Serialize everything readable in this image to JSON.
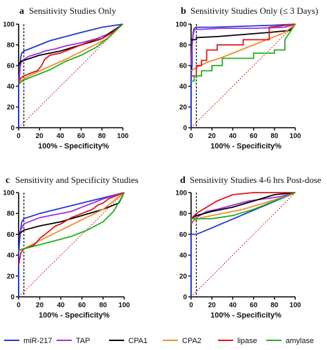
{
  "figure": {
    "xlabel": "100% - Specificity%",
    "legend_placement": "bottom",
    "legend": [
      {
        "name": "miR-217",
        "color": "#1f34e0"
      },
      {
        "name": "TAP",
        "color": "#a02de0"
      },
      {
        "name": "CPA1",
        "color": "#000000"
      },
      {
        "name": "CPA2",
        "color": "#f08c28"
      },
      {
        "name": "lipase",
        "color": "#e0121a"
      },
      {
        "name": "amylase",
        "color": "#20b020"
      }
    ]
  },
  "chart_data": [
    {
      "type": "line",
      "letter": "a",
      "title": "Sensitivity Studies Only",
      "xlabel": "100% - Specificity%",
      "xlim": [
        0,
        100
      ],
      "ylim": [
        0,
        100
      ],
      "xticks": [
        0,
        20,
        40,
        60,
        80,
        100
      ],
      "yticks": [
        0,
        20,
        40,
        60,
        80,
        100
      ],
      "vline": 5,
      "reference_diagonal": true,
      "series": [
        {
          "name": "miR-217",
          "color": "#1f34e0",
          "x": [
            0,
            0,
            1,
            2,
            3,
            5,
            10,
            30,
            60,
            80,
            100
          ],
          "y": [
            0,
            40,
            52,
            68,
            72,
            74,
            76,
            84,
            92,
            97,
            100
          ]
        },
        {
          "name": "TAP",
          "color": "#a02de0",
          "x": [
            0,
            2,
            5,
            10,
            20,
            25,
            35,
            45,
            60,
            75,
            85,
            100
          ],
          "y": [
            45,
            62,
            66,
            69,
            72,
            74,
            76,
            79,
            82,
            86,
            90,
            100
          ]
        },
        {
          "name": "CPA1",
          "color": "#000000",
          "x": [
            0,
            2,
            5,
            20,
            40,
            60,
            80,
            100
          ],
          "y": [
            60,
            64,
            65,
            70,
            74,
            80,
            86,
            100
          ]
        },
        {
          "name": "CPA2",
          "color": "#f08c28",
          "x": [
            0,
            3,
            10,
            25,
            45,
            65,
            85,
            100
          ],
          "y": [
            44,
            46,
            50,
            57,
            66,
            76,
            86,
            100
          ]
        },
        {
          "name": "lipase",
          "color": "#e0121a",
          "x": [
            0,
            2,
            5,
            10,
            15,
            18,
            22,
            25,
            30,
            40,
            50,
            60,
            70,
            80,
            90,
            100
          ],
          "y": [
            44,
            48,
            50,
            52,
            54,
            55,
            60,
            66,
            70,
            72,
            76,
            80,
            84,
            86,
            92,
            100
          ]
        },
        {
          "name": "amylase",
          "color": "#20b020",
          "x": [
            0,
            5,
            15,
            30,
            45,
            60,
            75,
            85,
            100
          ],
          "y": [
            42,
            46,
            50,
            56,
            64,
            70,
            78,
            86,
            100
          ]
        }
      ]
    },
    {
      "type": "line",
      "letter": "b",
      "title": "Sensitivity Studies Only (≤ 3 Days)",
      "xlabel": "100% - Specificity%",
      "xlim": [
        0,
        100
      ],
      "ylim": [
        0,
        100
      ],
      "xticks": [
        0,
        20,
        40,
        60,
        80,
        100
      ],
      "yticks": [
        0,
        20,
        40,
        60,
        80,
        100
      ],
      "vline": 5,
      "reference_diagonal": true,
      "series": [
        {
          "name": "miR-217",
          "color": "#1f34e0",
          "x": [
            0,
            0,
            1,
            1,
            2,
            3,
            5,
            20,
            50,
            80,
            100
          ],
          "y": [
            0,
            50,
            60,
            80,
            92,
            96,
            97,
            97,
            98,
            99,
            100
          ]
        },
        {
          "name": "TAP",
          "color": "#a02de0",
          "x": [
            0,
            1,
            2,
            3,
            5,
            10,
            30,
            60,
            90,
            100
          ],
          "y": [
            60,
            80,
            90,
            94,
            95,
            95,
            96,
            96,
            97,
            100
          ]
        },
        {
          "name": "CPA1",
          "color": "#000000",
          "x": [
            0,
            5,
            5,
            25,
            50,
            75,
            95,
            100
          ],
          "y": [
            85,
            85,
            87,
            88,
            90,
            92,
            94,
            100
          ]
        },
        {
          "name": "CPA2",
          "color": "#f08c28",
          "x": [
            0,
            5,
            15,
            30,
            45,
            60,
            75,
            90,
            100
          ],
          "y": [
            55,
            58,
            63,
            68,
            74,
            80,
            86,
            92,
            100
          ]
        },
        {
          "name": "lipase",
          "color": "#e0121a",
          "x": [
            0,
            5,
            5,
            10,
            10,
            15,
            15,
            25,
            25,
            50,
            50,
            75,
            75,
            100
          ],
          "y": [
            50,
            50,
            60,
            60,
            65,
            65,
            75,
            75,
            80,
            80,
            85,
            85,
            97,
            100
          ]
        },
        {
          "name": "amylase",
          "color": "#20b020",
          "x": [
            0,
            3,
            3,
            10,
            10,
            20,
            20,
            30,
            30,
            60,
            60,
            80,
            80,
            90,
            90,
            100
          ],
          "y": [
            45,
            45,
            50,
            50,
            55,
            55,
            60,
            60,
            67,
            67,
            72,
            72,
            75,
            75,
            85,
            100
          ]
        }
      ]
    },
    {
      "type": "line",
      "letter": "c",
      "title": "Sensitivity and Specificity Studies",
      "xlabel": "100% - Specificity%",
      "xlim": [
        0,
        100
      ],
      "ylim": [
        0,
        100
      ],
      "xticks": [
        0,
        20,
        40,
        60,
        80,
        100
      ],
      "yticks": [
        0,
        20,
        40,
        60,
        80,
        100
      ],
      "vline": 5,
      "reference_diagonal": true,
      "series": [
        {
          "name": "miR-217",
          "color": "#1f34e0",
          "x": [
            0,
            0,
            1,
            2,
            3,
            5,
            20,
            40,
            60,
            80,
            100
          ],
          "y": [
            0,
            40,
            55,
            65,
            72,
            75,
            80,
            85,
            90,
            95,
            100
          ]
        },
        {
          "name": "TAP",
          "color": "#a02de0",
          "x": [
            0,
            3,
            5,
            10,
            20,
            30,
            40,
            50,
            60,
            70,
            80,
            90,
            100
          ],
          "y": [
            60,
            66,
            70,
            72,
            76,
            78,
            80,
            82,
            86,
            90,
            94,
            97,
            100
          ]
        },
        {
          "name": "CPA1",
          "color": "#000000",
          "x": [
            0,
            5,
            20,
            40,
            60,
            80,
            95,
            100
          ],
          "y": [
            60,
            64,
            68,
            72,
            78,
            84,
            90,
            100
          ]
        },
        {
          "name": "CPA2",
          "color": "#f08c28",
          "x": [
            0,
            5,
            20,
            40,
            60,
            80,
            100
          ],
          "y": [
            44,
            46,
            54,
            64,
            74,
            84,
            100
          ]
        },
        {
          "name": "lipase",
          "color": "#e0121a",
          "x": [
            0,
            2,
            5,
            10,
            15,
            20,
            25,
            30,
            35,
            40,
            50,
            60,
            70,
            75,
            80,
            85,
            90,
            95,
            100
          ],
          "y": [
            30,
            42,
            46,
            48,
            50,
            56,
            60,
            64,
            68,
            70,
            76,
            80,
            84,
            88,
            90,
            94,
            96,
            98,
            100
          ]
        },
        {
          "name": "amylase",
          "color": "#20b020",
          "x": [
            0,
            5,
            20,
            35,
            50,
            65,
            80,
            90,
            100
          ],
          "y": [
            45,
            46,
            50,
            54,
            58,
            64,
            72,
            82,
            100
          ]
        }
      ]
    },
    {
      "type": "line",
      "letter": "d",
      "title": "Sensitivity Studies 4-6 hrs Post-dose",
      "xlabel": "100% - Specificity%",
      "xlim": [
        0,
        100
      ],
      "ylim": [
        0,
        100
      ],
      "xticks": [
        0,
        20,
        40,
        60,
        80,
        100
      ],
      "yticks": [
        0,
        20,
        40,
        60,
        80,
        100
      ],
      "vline": 5,
      "reference_diagonal": true,
      "series": [
        {
          "name": "miR-217",
          "color": "#1f34e0",
          "x": [
            0,
            0,
            5,
            10,
            100
          ],
          "y": [
            0,
            60,
            60,
            62,
            100
          ]
        },
        {
          "name": "TAP",
          "color": "#a02de0",
          "x": [
            0,
            5,
            15,
            25,
            40,
            55,
            70,
            85,
            100
          ],
          "y": [
            70,
            76,
            82,
            84,
            88,
            92,
            94,
            96,
            100
          ]
        },
        {
          "name": "CPA1",
          "color": "#000000",
          "x": [
            0,
            5,
            20,
            40,
            60,
            80,
            100
          ],
          "y": [
            75,
            78,
            82,
            86,
            92,
            98,
            100
          ]
        },
        {
          "name": "CPA2",
          "color": "#f08c28",
          "x": [
            0,
            10,
            30,
            50,
            70,
            90,
            100
          ],
          "y": [
            72,
            76,
            80,
            84,
            90,
            96,
            100
          ]
        },
        {
          "name": "lipase",
          "color": "#e0121a",
          "x": [
            0,
            5,
            15,
            25,
            40,
            60,
            80,
            100
          ],
          "y": [
            75,
            80,
            86,
            92,
            98,
            100,
            100,
            100
          ]
        },
        {
          "name": "amylase",
          "color": "#20b020",
          "x": [
            0,
            20,
            40,
            60,
            80,
            100
          ],
          "y": [
            75,
            75,
            78,
            84,
            92,
            100
          ]
        }
      ]
    }
  ]
}
